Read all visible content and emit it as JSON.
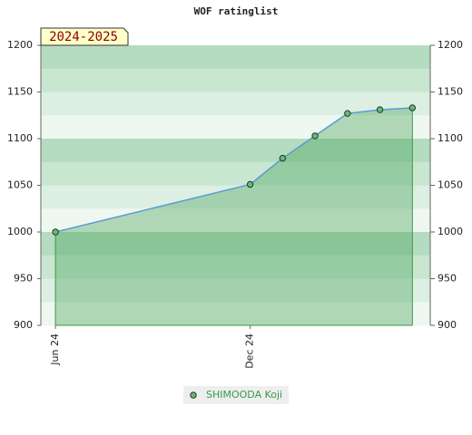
{
  "chart_data": {
    "type": "line",
    "title": "WOF ratinglist",
    "badge": "2024-2025",
    "x": [
      0,
      6,
      7,
      8,
      9,
      10,
      11
    ],
    "xlim": [
      -0.45,
      11.55
    ],
    "xticks": [
      {
        "value": 0,
        "label": "Jun 24"
      },
      {
        "value": 6,
        "label": "Dec 24"
      }
    ],
    "series": [
      {
        "name": "SHIMOODA Koji",
        "color": "#3a9a4a",
        "values": [
          1000,
          1051,
          1079,
          1103,
          1127,
          1131,
          1133
        ]
      }
    ],
    "ylim": [
      900,
      1200
    ],
    "yticks": [
      900,
      950,
      1000,
      1050,
      1100,
      1150,
      1200
    ],
    "y2lim": [
      900,
      1200
    ],
    "y2ticks": [
      900,
      950,
      1000,
      1050,
      1100,
      1150,
      1200
    ]
  }
}
